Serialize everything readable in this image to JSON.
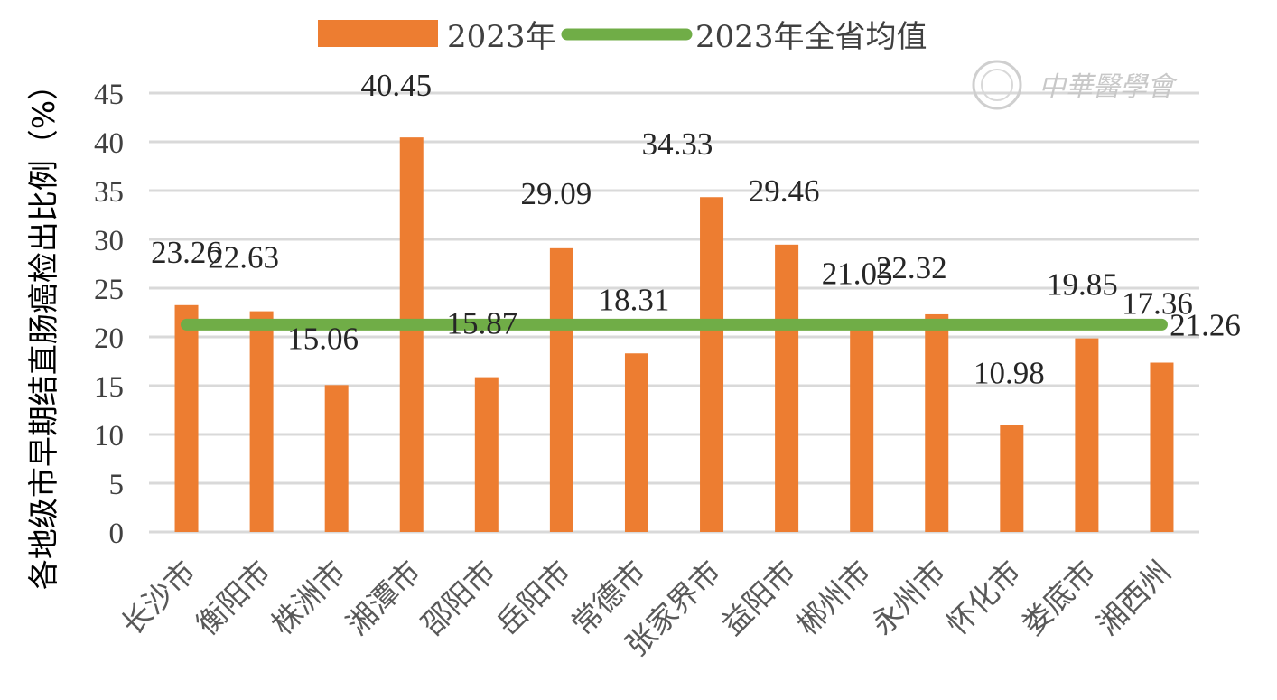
{
  "watermark": "中華醫學會",
  "chart_data": {
    "type": "bar",
    "ylabel": "各地级市早期结直肠癌检出比例（%）",
    "xlabel": "",
    "ylim": [
      0,
      45
    ],
    "yticks": [
      0,
      5,
      10,
      15,
      20,
      25,
      30,
      35,
      40,
      45
    ],
    "grid": true,
    "legend_position": "top",
    "categories": [
      "长沙市",
      "衡阳市",
      "株洲市",
      "湘潭市",
      "邵阳市",
      "岳阳市",
      "常德市",
      "张家界市",
      "益阳市",
      "郴州市",
      "永州市",
      "怀化市",
      "娄底市",
      "湘西州"
    ],
    "series": [
      {
        "name": "2023年",
        "type": "bar",
        "color": "#ED7D31",
        "values": [
          23.26,
          22.63,
          15.06,
          40.45,
          15.87,
          29.09,
          18.31,
          34.33,
          29.46,
          21.05,
          22.32,
          10.98,
          19.85,
          17.36
        ],
        "labels": [
          "23.26",
          "22.63",
          "15.06",
          "40.45",
          "15.87",
          "29.09",
          "18.31",
          "34.33",
          "29.46",
          "21.05",
          "22.32",
          "10.98",
          "19.85",
          "17.36"
        ]
      },
      {
        "name": "2023年全省均值",
        "type": "line",
        "color": "#70AD47",
        "value": 21.26,
        "label": "21.26"
      }
    ]
  }
}
